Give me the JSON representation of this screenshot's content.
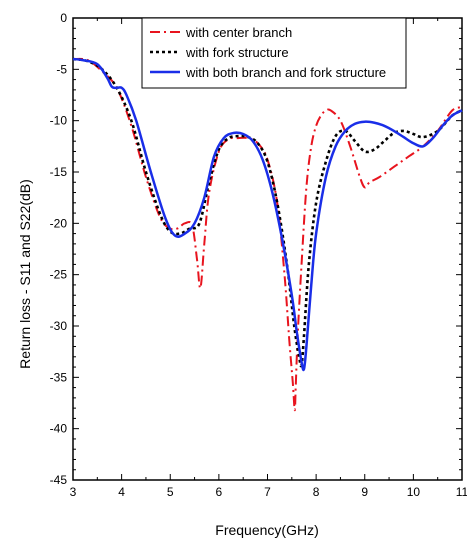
{
  "chart_data": {
    "type": "line",
    "title": "",
    "xlabel": "Frequency(GHz)",
    "ylabel": "Return loss - S11 and S22(dB)",
    "xlim": [
      3,
      11
    ],
    "ylim": [
      -45,
      0
    ],
    "xticks": [
      "3",
      "4",
      "5",
      "6",
      "7",
      "8",
      "9",
      "10",
      "11"
    ],
    "yticks": [
      "0",
      "-5",
      "-10",
      "-15",
      "-20",
      "-25",
      "-30",
      "-35",
      "-40",
      "-45"
    ],
    "grid": false,
    "legend_position": "top-right",
    "series": [
      {
        "name": "with center branch",
        "color": "#e8141e",
        "dash": "dash-dot",
        "x": [
          3.0,
          3.3,
          3.6,
          3.9,
          4.2,
          4.5,
          4.8,
          5.0,
          5.15,
          5.3,
          5.45,
          5.55,
          5.62,
          5.7,
          5.8,
          6.0,
          6.2,
          6.4,
          6.6,
          6.8,
          7.0,
          7.2,
          7.35,
          7.45,
          7.52,
          7.56,
          7.58,
          7.62,
          7.7,
          7.8,
          7.9,
          8.0,
          8.1,
          8.2,
          8.3,
          8.5,
          8.7,
          8.9,
          9.0,
          9.1,
          9.3,
          9.6,
          9.9,
          10.2,
          10.5,
          10.8,
          11.0
        ],
        "values": [
          -4.0,
          -4.1,
          -5.2,
          -6.8,
          -10.5,
          -15.5,
          -19.5,
          -20.5,
          -20.5,
          -20.0,
          -20.2,
          -23.5,
          -26.3,
          -22.0,
          -17.0,
          -13.0,
          -11.8,
          -11.7,
          -11.7,
          -12.2,
          -13.8,
          -18.0,
          -25.0,
          -31.5,
          -35.5,
          -38.2,
          -36.0,
          -31.0,
          -24.0,
          -16.5,
          -12.5,
          -10.5,
          -9.5,
          -9.0,
          -9.0,
          -10.0,
          -12.5,
          -15.5,
          -16.5,
          -16.0,
          -15.5,
          -14.5,
          -13.5,
          -12.5,
          -11.0,
          -9.0,
          -8.7
        ]
      },
      {
        "name": "with fork structure",
        "color": "#000000",
        "dash": "dotted",
        "x": [
          3.0,
          3.3,
          3.6,
          3.9,
          4.2,
          4.5,
          4.8,
          5.0,
          5.2,
          5.4,
          5.6,
          5.8,
          6.0,
          6.2,
          6.4,
          6.6,
          6.8,
          7.0,
          7.2,
          7.4,
          7.55,
          7.65,
          7.7,
          7.75,
          7.85,
          8.0,
          8.2,
          8.4,
          8.6,
          8.8,
          9.0,
          9.2,
          9.4,
          9.6,
          9.8,
          10.0,
          10.2,
          10.5,
          10.8,
          11.0
        ],
        "values": [
          -4.0,
          -4.2,
          -5.0,
          -6.8,
          -10.0,
          -15.0,
          -19.2,
          -20.8,
          -21.0,
          -20.5,
          -20.0,
          -16.0,
          -12.8,
          -11.7,
          -11.5,
          -11.6,
          -12.2,
          -14.0,
          -18.0,
          -24.0,
          -30.0,
          -33.0,
          -33.8,
          -31.0,
          -24.0,
          -18.0,
          -14.0,
          -11.5,
          -11.0,
          -12.0,
          -13.0,
          -12.8,
          -12.0,
          -11.2,
          -11.0,
          -11.3,
          -11.6,
          -11.0,
          -9.5,
          -9.0
        ]
      },
      {
        "name": "with both branch and fork structure",
        "color": "#1a2ee8",
        "dash": "solid",
        "x": [
          3.0,
          3.2,
          3.5,
          3.7,
          3.8,
          3.9,
          4.0,
          4.1,
          4.3,
          4.6,
          4.9,
          5.1,
          5.3,
          5.5,
          5.7,
          5.9,
          6.1,
          6.3,
          6.5,
          6.7,
          6.9,
          7.1,
          7.3,
          7.5,
          7.6,
          7.7,
          7.75,
          7.8,
          7.9,
          8.0,
          8.2,
          8.4,
          8.6,
          8.8,
          9.0,
          9.2,
          9.4,
          9.6,
          9.8,
          10.0,
          10.2,
          10.4,
          10.6,
          10.8,
          11.0
        ],
        "values": [
          -4.0,
          -4.1,
          -4.5,
          -5.8,
          -6.7,
          -6.8,
          -6.8,
          -7.5,
          -10.0,
          -15.0,
          -19.5,
          -21.2,
          -21.0,
          -20.0,
          -17.5,
          -13.5,
          -11.7,
          -11.2,
          -11.3,
          -12.0,
          -13.8,
          -17.0,
          -21.5,
          -27.0,
          -30.5,
          -33.5,
          -34.2,
          -32.0,
          -26.0,
          -21.0,
          -15.5,
          -12.5,
          -11.0,
          -10.3,
          -10.1,
          -10.2,
          -10.5,
          -11.0,
          -11.6,
          -12.2,
          -12.5,
          -11.7,
          -10.5,
          -9.5,
          -9.0
        ]
      }
    ]
  }
}
